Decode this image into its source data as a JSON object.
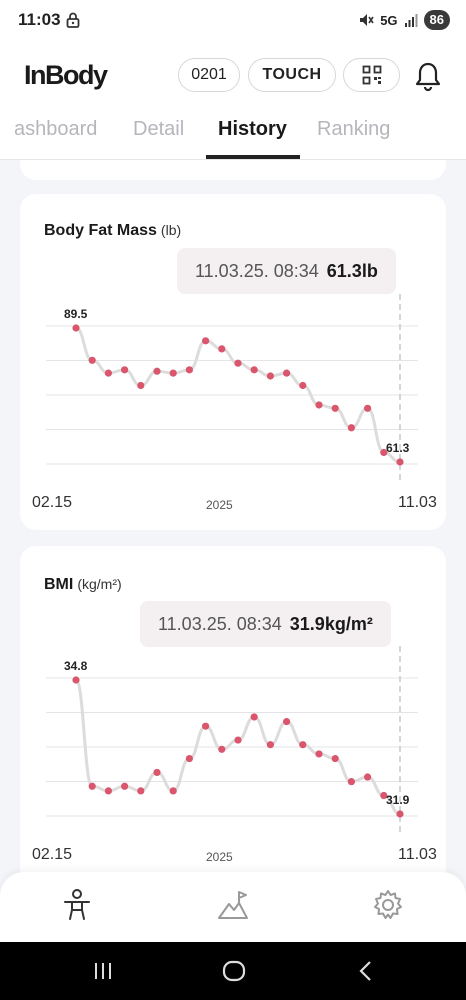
{
  "status_bar": {
    "time": "11:03",
    "network": "5G",
    "battery": "86"
  },
  "header": {
    "logo": "InBody",
    "code_button": "0201",
    "touch_button": "TOUCH"
  },
  "tabs": [
    {
      "label": "ashboard",
      "active": false
    },
    {
      "label": "Detail",
      "active": false
    },
    {
      "label": "History",
      "active": true
    },
    {
      "label": "Ranking",
      "active": false
    }
  ],
  "cards": [
    {
      "title": "Body Fat Mass",
      "unit": "(lb)",
      "tooltip": {
        "datetime": "11.03.25. 08:34",
        "value": "61.3lb"
      },
      "x_start": "02.15",
      "x_year": "2025",
      "x_end": "11.03",
      "first_label": "89.5",
      "last_label": "61.3"
    },
    {
      "title": "BMI",
      "unit": "(kg/m²)",
      "tooltip": {
        "datetime": "11.03.25. 08:34",
        "value": "31.9kg/m²"
      },
      "x_start": "02.15",
      "x_year": "2025",
      "x_end": "11.03",
      "first_label": "34.8",
      "last_label": "31.9"
    }
  ],
  "chart_data": [
    {
      "type": "line",
      "title": "Body Fat Mass",
      "ylabel": "(lb)",
      "x_range": [
        "02.15",
        "11.03"
      ],
      "year": "2025",
      "values": [
        89.5,
        82.7,
        80.0,
        80.7,
        77.4,
        80.4,
        80.0,
        80.7,
        86.8,
        85.1,
        82.1,
        80.7,
        79.4,
        80.0,
        77.4,
        73.3,
        72.6,
        68.5,
        72.6,
        63.3,
        61.3
      ],
      "point_color": "#d9566c",
      "line_color": "#dcdcdc",
      "grid": true
    },
    {
      "type": "line",
      "title": "BMI",
      "ylabel": "(kg/m²)",
      "x_range": [
        "02.15",
        "11.03"
      ],
      "year": "2025",
      "values": [
        34.8,
        32.5,
        32.4,
        32.5,
        32.4,
        32.8,
        32.4,
        33.1,
        33.8,
        33.3,
        33.5,
        34.0,
        33.4,
        33.9,
        33.4,
        33.2,
        33.1,
        32.6,
        32.7,
        32.3,
        31.9
      ],
      "point_color": "#d9566c",
      "line_color": "#dcdcdc",
      "grid": true
    }
  ],
  "bottom_nav": {
    "items": [
      {
        "icon": "body-person-icon",
        "active": true
      },
      {
        "icon": "mountain-flag-icon",
        "active": false
      },
      {
        "icon": "settings-gear-icon",
        "active": false
      }
    ]
  },
  "system_nav": {
    "icons": [
      "recent-apps-icon",
      "home-icon",
      "back-icon"
    ]
  }
}
